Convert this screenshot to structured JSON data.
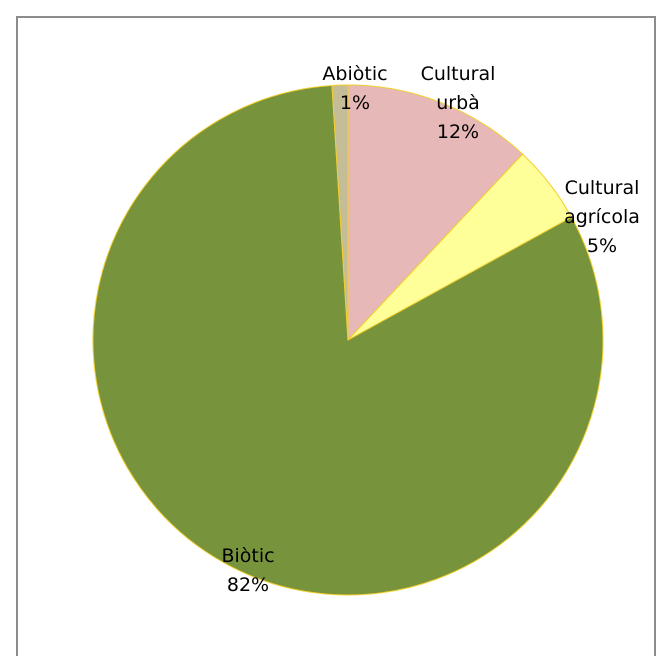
{
  "chart_data": {
    "type": "pie",
    "start_angle_deg": 0,
    "direction": "clockwise",
    "slices": [
      {
        "label_lines": [
          "Cultural",
          "urbà"
        ],
        "pct_label": "12%",
        "value": 12,
        "color": "#e6b8b7"
      },
      {
        "label_lines": [
          "Cultural",
          "agrícola"
        ],
        "pct_label": "5%",
        "value": 5,
        "color": "#ffff99"
      },
      {
        "label_lines": [
          "Biòtic"
        ],
        "pct_label": "82%",
        "value": 82,
        "color": "#77933c"
      },
      {
        "label_lines": [
          "Abiòtic"
        ],
        "pct_label": "1%",
        "value": 1,
        "color": "#c4bd97"
      }
    ],
    "slice_border_color": "#f2cf2e",
    "legend": "none"
  }
}
